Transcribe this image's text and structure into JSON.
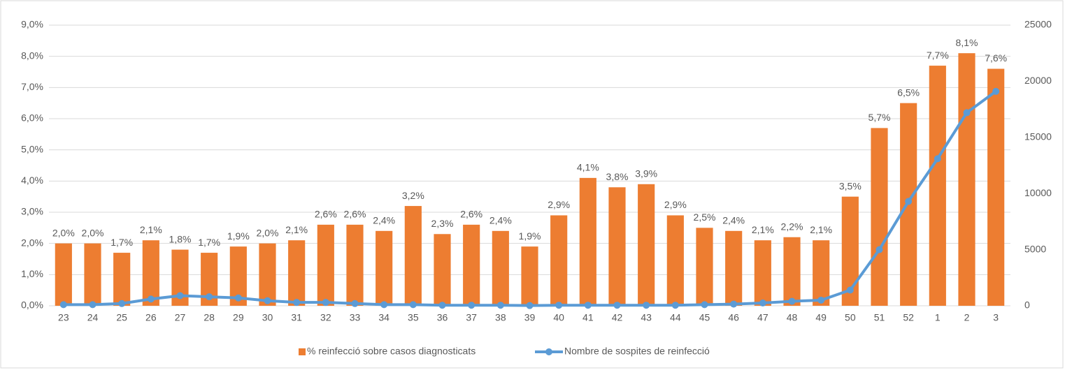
{
  "chart_data": {
    "type": "combo",
    "categories": [
      "23",
      "24",
      "25",
      "26",
      "27",
      "28",
      "29",
      "30",
      "31",
      "32",
      "33",
      "34",
      "35",
      "36",
      "37",
      "38",
      "39",
      "40",
      "41",
      "42",
      "43",
      "44",
      "45",
      "46",
      "47",
      "48",
      "49",
      "50",
      "51",
      "52",
      "1",
      "2",
      "3"
    ],
    "series": [
      {
        "name": "% reinfecció sobre casos diagnosticats",
        "type": "bar",
        "color": "#ed7d31",
        "values": [
          2.0,
          2.0,
          1.7,
          2.1,
          1.8,
          1.7,
          1.9,
          2.0,
          2.1,
          2.6,
          2.6,
          2.4,
          3.2,
          2.3,
          2.6,
          2.4,
          1.9,
          2.9,
          4.1,
          3.8,
          3.9,
          2.9,
          2.5,
          2.4,
          2.1,
          2.2,
          2.1,
          3.5,
          5.7,
          6.5,
          7.7,
          8.1,
          7.6
        ],
        "value_labels": [
          "2,0%",
          "2,0%",
          "1,7%",
          "2,1%",
          "1,8%",
          "1,7%",
          "1,9%",
          "2,0%",
          "2,1%",
          "2,6%",
          "2,6%",
          "2,4%",
          "3,2%",
          "2,3%",
          "2,6%",
          "2,4%",
          "1,9%",
          "2,9%",
          "4,1%",
          "3,8%",
          "3,9%",
          "2,9%",
          "2,5%",
          "2,4%",
          "2,1%",
          "2,2%",
          "2,1%",
          "3,5%",
          "5,7%",
          "6,5%",
          "7,7%",
          "8,1%",
          "7,6%"
        ]
      },
      {
        "name": "Nombre de sospites de reinfecció",
        "type": "line",
        "axis": "y2",
        "color": "#5b9bd5",
        "values": [
          100,
          100,
          200,
          600,
          900,
          800,
          700,
          450,
          300,
          300,
          200,
          100,
          100,
          50,
          50,
          50,
          20,
          50,
          50,
          50,
          50,
          50,
          100,
          150,
          250,
          400,
          500,
          1400,
          5000,
          9300,
          13100,
          17200,
          19100
        ]
      }
    ],
    "ylim": [
      0,
      9
    ],
    "yticks": [
      {
        "value": 0,
        "label": "0,0%"
      },
      {
        "value": 1,
        "label": "1,0%"
      },
      {
        "value": 2,
        "label": "2,0%"
      },
      {
        "value": 3,
        "label": "3,0%"
      },
      {
        "value": 4,
        "label": "4,0%"
      },
      {
        "value": 5,
        "label": "5,0%"
      },
      {
        "value": 6,
        "label": "6,0%"
      },
      {
        "value": 7,
        "label": "7,0%"
      },
      {
        "value": 8,
        "label": "8,0%"
      },
      {
        "value": 9,
        "label": "9,0%"
      }
    ],
    "y2lim": [
      0,
      25000
    ],
    "y2ticks": [
      0,
      5000,
      10000,
      15000,
      20000,
      25000
    ],
    "grid": true,
    "legend": "bottom"
  }
}
